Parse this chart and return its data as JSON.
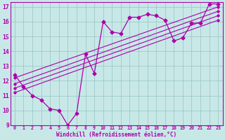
{
  "background_color": "#c8e8e8",
  "grid_color": "#9dc8c8",
  "line_color": "#aa00aa",
  "xlabel": "Windchill (Refroidissement éolien,°C)",
  "xlim": [
    -0.5,
    23.5
  ],
  "ylim": [
    9,
    17.3
  ],
  "yticks": [
    9,
    10,
    11,
    12,
    13,
    14,
    15,
    16,
    17
  ],
  "xticks": [
    0,
    1,
    2,
    3,
    4,
    5,
    6,
    7,
    8,
    9,
    10,
    11,
    12,
    13,
    14,
    15,
    16,
    17,
    18,
    19,
    20,
    21,
    22,
    23
  ],
  "main_curve": {
    "x": [
      0,
      1,
      2,
      3,
      4,
      5,
      6,
      7,
      8,
      9,
      10,
      11,
      12,
      13,
      14,
      15,
      16,
      17,
      18,
      19,
      20,
      21,
      22,
      23
    ],
    "y": [
      12.4,
      11.6,
      11.0,
      10.7,
      10.1,
      10.0,
      9.0,
      9.8,
      13.8,
      12.5,
      16.0,
      15.3,
      15.2,
      16.3,
      16.3,
      16.5,
      16.4,
      16.1,
      14.7,
      14.9,
      15.9,
      15.9,
      17.2,
      17.2
    ]
  },
  "straight_lines": [
    {
      "x": [
        0,
        23
      ],
      "y": [
        12.2,
        17.0
      ]
    },
    {
      "x": [
        0,
        23
      ],
      "y": [
        11.8,
        16.7
      ]
    },
    {
      "x": [
        0,
        23
      ],
      "y": [
        11.5,
        16.4
      ]
    },
    {
      "x": [
        0,
        23
      ],
      "y": [
        11.2,
        16.1
      ]
    }
  ]
}
